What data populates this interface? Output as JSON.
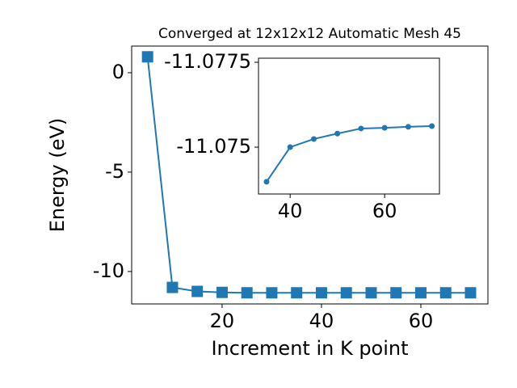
{
  "chart_data": [
    {
      "type": "line",
      "title": "Converged at 12x12x12 Automatic Mesh 45",
      "xlabel": "Increment in K point",
      "ylabel": "Energy (eV)",
      "x": [
        5,
        10,
        15,
        20,
        25,
        30,
        35,
        40,
        45,
        50,
        55,
        60,
        65,
        70
      ],
      "series": [
        {
          "color": "#1f77b4",
          "marker": "square",
          "values": [
            0.8,
            -10.8,
            -11.0,
            -11.05,
            -11.07,
            -11.07,
            -11.07,
            -11.07,
            -11.07,
            -11.07,
            -11.07,
            -11.07,
            -11.07,
            -11.07
          ]
        }
      ],
      "xlim": [
        1.8,
        73.5
      ],
      "xticks": [
        20,
        40,
        60
      ],
      "ylim": [
        -11.63,
        1.34
      ],
      "yticks": [
        -10,
        -5,
        0
      ]
    },
    {
      "type": "line",
      "x": [
        35,
        40,
        45,
        50,
        55,
        60,
        65,
        70
      ],
      "series": [
        {
          "color": "#1f77b4",
          "marker": "circle",
          "values": [
            -11.07398,
            -11.075,
            -11.07524,
            -11.0754,
            -11.07555,
            -11.07557,
            -11.0756,
            -11.07562
          ]
        }
      ],
      "xlim": [
        33.3,
        71.6
      ],
      "xticks": [
        40,
        60
      ],
      "ylim": [
        -11.07362,
        -11.07762
      ],
      "yinvert": true,
      "yticks": [
        -11.0775,
        -11.075
      ]
    }
  ]
}
